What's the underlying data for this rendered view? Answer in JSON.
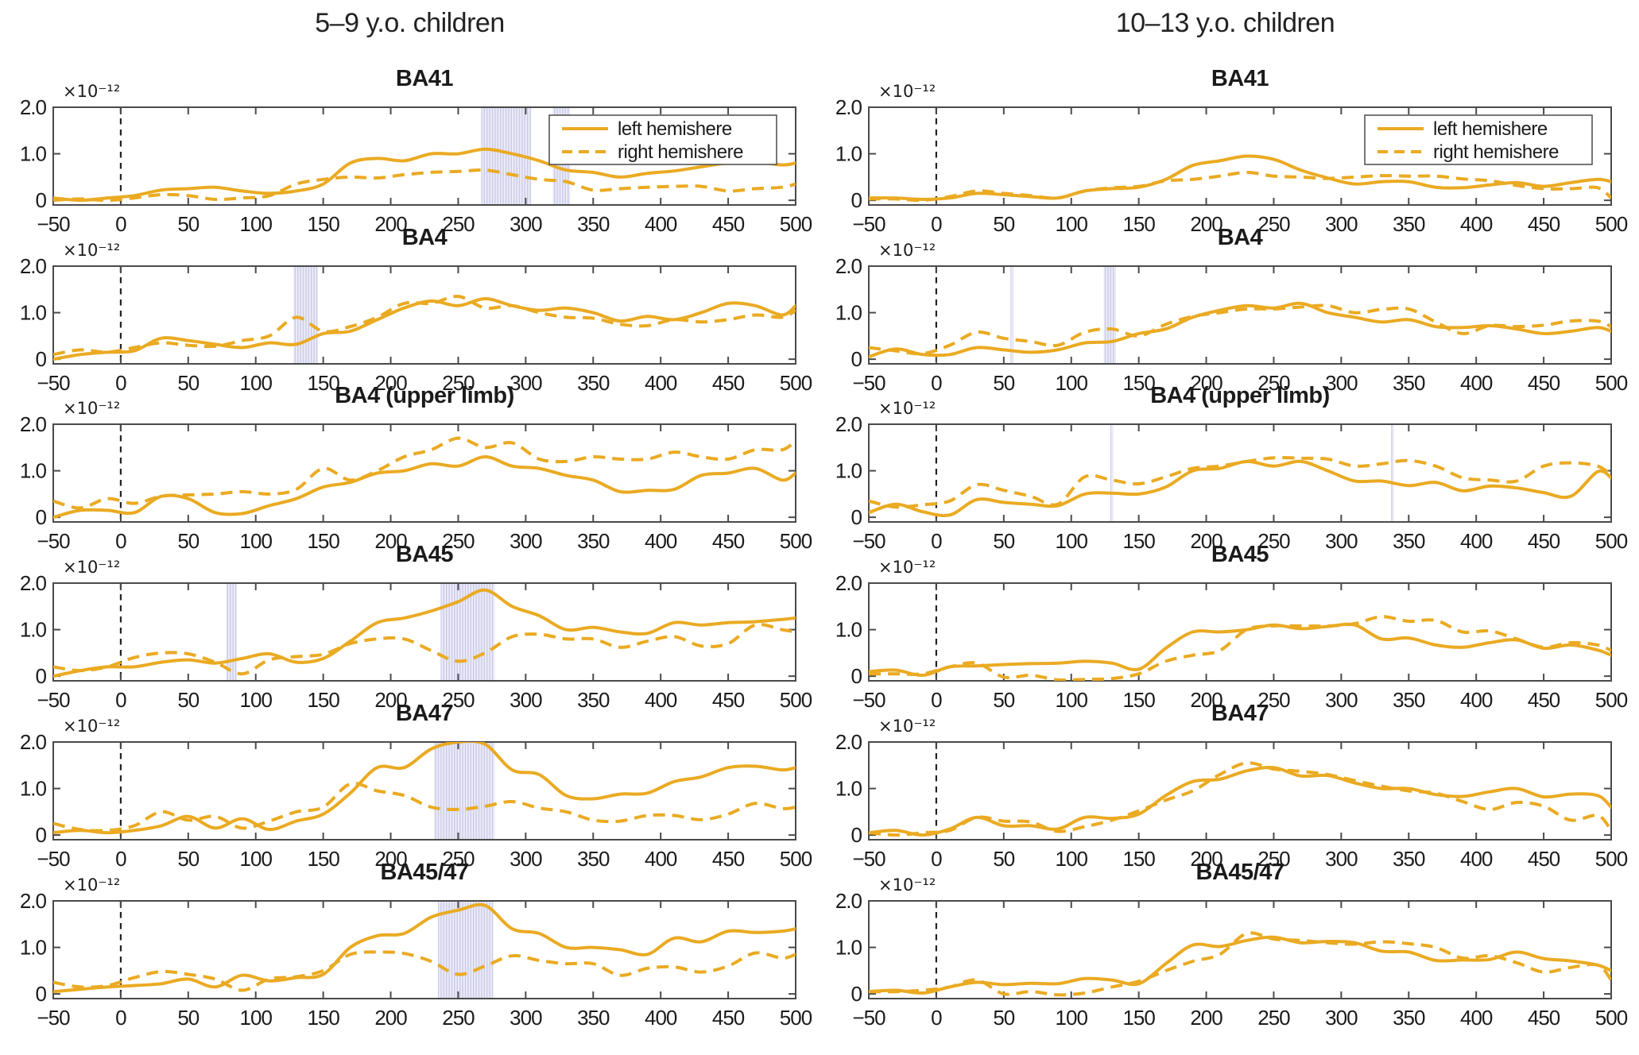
{
  "figure": {
    "kind": "ERP source-amplitude time courses by Brodmann area",
    "y_scale_label": "×10⁻¹²"
  },
  "legend": {
    "entries": [
      {
        "label": "left hemishere",
        "style": "solid"
      },
      {
        "label": "right hemishere",
        "style": "dashed"
      }
    ]
  },
  "colors": {
    "line": "#EAAA22",
    "band_stripe": "#c9c9e9",
    "band_bg": "#ededf8",
    "axis": "#4a4a4a",
    "tick_text": "#1b1b1b",
    "zero_line": "#222222",
    "legend_border": "#555555"
  },
  "chart_data": {
    "type": "line",
    "x": [
      -50,
      -30,
      -10,
      10,
      30,
      50,
      70,
      90,
      110,
      130,
      150,
      170,
      190,
      210,
      230,
      250,
      270,
      290,
      310,
      330,
      350,
      370,
      390,
      410,
      430,
      450,
      470,
      490,
      500
    ],
    "x_axis": {
      "range": [
        -50,
        500
      ],
      "ticks": [
        -50,
        0,
        50,
        100,
        150,
        200,
        250,
        300,
        350,
        400,
        450,
        500
      ],
      "zero_marker": "dashed-vertical-line"
    },
    "y_axis": {
      "range": [
        -0.1,
        2.0
      ],
      "ticks": [
        {
          "value": 0,
          "label": "0"
        },
        {
          "value": 1,
          "label": "1.0"
        },
        {
          "value": 2,
          "label": "2.0"
        }
      ],
      "scale_label": "×10⁻¹²"
    },
    "columns": [
      {
        "title": "5–9 y.o. children",
        "plots": [
          {
            "title": "BA41",
            "legend": true,
            "significance_bands": [
              [
                267,
                304
              ],
              [
                320,
                333
              ]
            ],
            "left_hemisphere": [
              0.05,
              0.0,
              0.05,
              0.1,
              0.22,
              0.25,
              0.28,
              0.2,
              0.15,
              0.2,
              0.35,
              0.8,
              0.9,
              0.85,
              1.0,
              1.0,
              1.1,
              1.0,
              0.85,
              0.65,
              0.6,
              0.5,
              0.58,
              0.63,
              0.72,
              0.8,
              0.82,
              0.76,
              0.8
            ],
            "right_hemisphere": [
              0.0,
              0.03,
              0.0,
              0.05,
              0.12,
              0.1,
              0.02,
              0.05,
              0.1,
              0.35,
              0.45,
              0.5,
              0.48,
              0.55,
              0.6,
              0.62,
              0.65,
              0.55,
              0.45,
              0.4,
              0.22,
              0.25,
              0.28,
              0.3,
              0.3,
              0.2,
              0.25,
              0.28,
              0.35
            ]
          },
          {
            "title": "BA4",
            "legend": false,
            "significance_bands": [
              [
                128,
                146
              ]
            ],
            "left_hemisphere": [
              0.0,
              0.1,
              0.15,
              0.18,
              0.45,
              0.4,
              0.32,
              0.25,
              0.35,
              0.32,
              0.55,
              0.6,
              0.85,
              1.1,
              1.25,
              1.15,
              1.3,
              1.15,
              1.05,
              1.1,
              1.0,
              0.82,
              0.92,
              0.85,
              1.0,
              1.2,
              1.15,
              0.95,
              1.15
            ],
            "right_hemisphere": [
              0.1,
              0.2,
              0.15,
              0.25,
              0.35,
              0.3,
              0.28,
              0.4,
              0.5,
              0.9,
              0.6,
              0.7,
              0.9,
              1.2,
              1.2,
              1.35,
              1.1,
              1.15,
              1.0,
              0.9,
              0.88,
              0.75,
              0.72,
              0.85,
              0.8,
              0.85,
              0.95,
              0.9,
              1.05
            ]
          },
          {
            "title": "BA4 (upper limb)",
            "legend": false,
            "significance_bands": [],
            "left_hemisphere": [
              0.0,
              0.15,
              0.15,
              0.1,
              0.45,
              0.4,
              0.1,
              0.08,
              0.25,
              0.4,
              0.65,
              0.75,
              0.95,
              1.0,
              1.15,
              1.1,
              1.3,
              1.1,
              1.05,
              0.9,
              0.8,
              0.55,
              0.58,
              0.6,
              0.9,
              0.95,
              1.05,
              0.8,
              0.95
            ],
            "right_hemisphere": [
              0.35,
              0.2,
              0.4,
              0.3,
              0.45,
              0.48,
              0.5,
              0.55,
              0.5,
              0.6,
              1.05,
              0.8,
              1.0,
              1.3,
              1.45,
              1.7,
              1.5,
              1.6,
              1.25,
              1.2,
              1.3,
              1.25,
              1.25,
              1.4,
              1.3,
              1.25,
              1.45,
              1.45,
              1.65
            ]
          },
          {
            "title": "BA45",
            "legend": false,
            "significance_bands": [
              [
                78,
                86
              ],
              [
                237,
                277
              ]
            ],
            "left_hemisphere": [
              0.0,
              0.12,
              0.2,
              0.2,
              0.3,
              0.35,
              0.28,
              0.38,
              0.48,
              0.3,
              0.38,
              0.75,
              1.15,
              1.25,
              1.4,
              1.6,
              1.85,
              1.5,
              1.3,
              1.0,
              1.05,
              0.95,
              0.92,
              1.15,
              1.1,
              1.15,
              1.17,
              1.22,
              1.25
            ],
            "right_hemisphere": [
              0.2,
              0.12,
              0.2,
              0.4,
              0.5,
              0.48,
              0.3,
              0.05,
              0.35,
              0.42,
              0.47,
              0.7,
              0.8,
              0.8,
              0.55,
              0.32,
              0.5,
              0.85,
              0.9,
              0.8,
              0.8,
              0.62,
              0.75,
              0.85,
              0.65,
              0.7,
              1.1,
              1.0,
              0.95
            ]
          },
          {
            "title": "BA47",
            "legend": false,
            "significance_bands": [
              [
                232,
                277
              ]
            ],
            "left_hemisphere": [
              0.05,
              0.1,
              0.05,
              0.1,
              0.2,
              0.4,
              0.15,
              0.35,
              0.12,
              0.3,
              0.45,
              0.9,
              1.45,
              1.45,
              1.85,
              2.0,
              1.95,
              1.4,
              1.3,
              0.85,
              0.78,
              0.88,
              0.9,
              1.15,
              1.25,
              1.45,
              1.48,
              1.4,
              1.45
            ],
            "right_hemisphere": [
              0.25,
              0.12,
              0.1,
              0.2,
              0.5,
              0.32,
              0.4,
              0.15,
              0.3,
              0.5,
              0.6,
              1.1,
              0.95,
              0.85,
              0.6,
              0.55,
              0.62,
              0.72,
              0.58,
              0.5,
              0.32,
              0.3,
              0.42,
              0.42,
              0.33,
              0.45,
              0.68,
              0.57,
              0.6
            ]
          },
          {
            "title": "BA45/47",
            "legend": false,
            "significance_bands": [
              [
                235,
                276
              ]
            ],
            "left_hemisphere": [
              0.05,
              0.1,
              0.15,
              0.18,
              0.22,
              0.32,
              0.15,
              0.4,
              0.28,
              0.35,
              0.42,
              1.0,
              1.25,
              1.3,
              1.65,
              1.8,
              1.9,
              1.4,
              1.3,
              1.0,
              1.0,
              0.95,
              0.85,
              1.2,
              1.12,
              1.35,
              1.32,
              1.35,
              1.4
            ],
            "right_hemisphere": [
              0.25,
              0.15,
              0.18,
              0.35,
              0.48,
              0.42,
              0.32,
              0.08,
              0.32,
              0.37,
              0.5,
              0.85,
              0.9,
              0.87,
              0.7,
              0.42,
              0.6,
              0.82,
              0.72,
              0.65,
              0.65,
              0.4,
              0.55,
              0.58,
              0.47,
              0.6,
              0.88,
              0.77,
              0.85
            ]
          }
        ]
      },
      {
        "title": "10–13 y.o. children",
        "plots": [
          {
            "title": "BA41",
            "legend": true,
            "significance_bands": [],
            "left_hemisphere": [
              0.05,
              0.05,
              0.02,
              0.05,
              0.15,
              0.12,
              0.08,
              0.05,
              0.2,
              0.25,
              0.28,
              0.45,
              0.75,
              0.85,
              0.95,
              0.88,
              0.65,
              0.48,
              0.35,
              0.4,
              0.4,
              0.28,
              0.27,
              0.33,
              0.38,
              0.3,
              0.38,
              0.45,
              0.4
            ],
            "right_hemisphere": [
              0.03,
              0.03,
              0.0,
              0.08,
              0.2,
              0.15,
              0.1,
              0.05,
              0.2,
              0.27,
              0.3,
              0.42,
              0.45,
              0.52,
              0.6,
              0.52,
              0.5,
              0.47,
              0.5,
              0.53,
              0.52,
              0.52,
              0.46,
              0.42,
              0.32,
              0.25,
              0.25,
              0.27,
              0.05
            ]
          },
          {
            "title": "BA4",
            "legend": false,
            "significance_bands": [
              [
                55,
                57
              ],
              [
                124,
                133
              ]
            ],
            "left_hemisphere": [
              0.05,
              0.22,
              0.1,
              0.1,
              0.25,
              0.2,
              0.15,
              0.2,
              0.35,
              0.38,
              0.55,
              0.65,
              0.9,
              1.05,
              1.15,
              1.1,
              1.2,
              1.0,
              0.9,
              0.8,
              0.85,
              0.7,
              0.68,
              0.72,
              0.65,
              0.55,
              0.6,
              0.68,
              0.6
            ],
            "right_hemisphere": [
              0.25,
              0.18,
              0.12,
              0.3,
              0.58,
              0.45,
              0.38,
              0.3,
              0.58,
              0.65,
              0.5,
              0.75,
              0.92,
              1.0,
              1.08,
              1.08,
              1.12,
              1.15,
              1.0,
              1.07,
              1.08,
              0.8,
              0.55,
              0.72,
              0.7,
              0.73,
              0.82,
              0.82,
              0.7
            ]
          },
          {
            "title": "BA4 (upper limb)",
            "legend": false,
            "significance_bands": [
              [
                129,
                131
              ],
              [
                337,
                339
              ]
            ],
            "left_hemisphere": [
              0.1,
              0.28,
              0.12,
              0.05,
              0.38,
              0.32,
              0.28,
              0.25,
              0.5,
              0.52,
              0.5,
              0.65,
              1.0,
              1.05,
              1.2,
              1.1,
              1.2,
              1.0,
              0.78,
              0.78,
              0.68,
              0.75,
              0.57,
              0.67,
              0.63,
              0.53,
              0.45,
              0.98,
              0.85
            ],
            "right_hemisphere": [
              0.35,
              0.22,
              0.27,
              0.35,
              0.7,
              0.58,
              0.45,
              0.28,
              0.87,
              0.8,
              0.72,
              0.87,
              1.05,
              1.1,
              1.2,
              1.28,
              1.27,
              1.25,
              1.1,
              1.15,
              1.22,
              1.1,
              0.85,
              0.8,
              0.78,
              1.1,
              1.17,
              1.1,
              0.9
            ]
          },
          {
            "title": "BA45",
            "legend": false,
            "significance_bands": [],
            "left_hemisphere": [
              0.1,
              0.13,
              0.02,
              0.2,
              0.22,
              0.25,
              0.27,
              0.28,
              0.32,
              0.28,
              0.15,
              0.6,
              0.95,
              0.95,
              1.0,
              1.1,
              1.02,
              1.07,
              1.1,
              0.8,
              0.82,
              0.67,
              0.62,
              0.72,
              0.78,
              0.6,
              0.67,
              0.56,
              0.45
            ],
            "right_hemisphere": [
              0.05,
              0.05,
              0.05,
              0.2,
              0.28,
              -0.02,
              0.02,
              -0.08,
              -0.07,
              -0.05,
              0.05,
              0.32,
              0.45,
              0.55,
              1.0,
              1.08,
              1.08,
              1.08,
              1.13,
              1.28,
              1.18,
              1.2,
              0.95,
              0.97,
              0.8,
              0.62,
              0.72,
              0.67,
              0.55
            ]
          },
          {
            "title": "BA47",
            "legend": false,
            "significance_bands": [],
            "left_hemisphere": [
              0.05,
              0.1,
              0.0,
              0.13,
              0.38,
              0.2,
              0.2,
              0.13,
              0.38,
              0.36,
              0.45,
              0.85,
              1.15,
              1.2,
              1.38,
              1.45,
              1.27,
              1.28,
              1.12,
              1.0,
              1.0,
              0.87,
              0.83,
              0.93,
              1.0,
              0.82,
              0.88,
              0.85,
              0.6
            ],
            "right_hemisphere": [
              0.05,
              0.0,
              0.05,
              0.1,
              0.38,
              0.3,
              0.28,
              0.08,
              0.18,
              0.32,
              0.52,
              0.75,
              0.95,
              1.3,
              1.55,
              1.42,
              1.37,
              1.3,
              1.17,
              1.05,
              0.95,
              0.9,
              0.72,
              0.55,
              0.7,
              0.62,
              0.32,
              0.42,
              0.1
            ]
          },
          {
            "title": "BA45/47",
            "legend": false,
            "significance_bands": [],
            "left_hemisphere": [
              0.05,
              0.08,
              0.02,
              0.15,
              0.25,
              0.2,
              0.23,
              0.22,
              0.33,
              0.3,
              0.22,
              0.65,
              1.05,
              1.02,
              1.15,
              1.22,
              1.1,
              1.13,
              1.1,
              0.92,
              0.9,
              0.72,
              0.73,
              0.74,
              0.9,
              0.76,
              0.71,
              0.62,
              0.5
            ],
            "right_hemisphere": [
              0.05,
              0.05,
              0.08,
              0.15,
              0.3,
              0.0,
              0.05,
              -0.02,
              0.02,
              0.15,
              0.27,
              0.5,
              0.7,
              0.85,
              1.3,
              1.18,
              1.15,
              1.1,
              1.07,
              1.12,
              1.08,
              1.0,
              0.77,
              0.82,
              0.67,
              0.47,
              0.57,
              0.62,
              0.3
            ]
          }
        ]
      }
    ]
  }
}
